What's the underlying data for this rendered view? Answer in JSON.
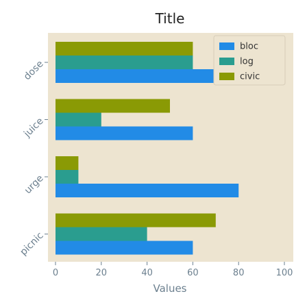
{
  "chart_data": {
    "type": "bar",
    "orientation": "horizontal",
    "title": "Title",
    "xlabel": "Values",
    "ylabel": "",
    "xlim": [
      0,
      100
    ],
    "xticks": [
      0,
      20,
      40,
      60,
      80,
      100
    ],
    "categories": [
      "dose",
      "juice",
      "urge",
      "picnic"
    ],
    "series": [
      {
        "name": "bloc",
        "color": "#228be6",
        "values": [
          70,
          60,
          80,
          60
        ]
      },
      {
        "name": "log",
        "color": "#2a9d8f",
        "values": [
          60,
          20,
          10,
          40
        ]
      },
      {
        "name": "civic",
        "color": "#8a9a05",
        "values": [
          60,
          50,
          10,
          70
        ]
      }
    ],
    "grid": false,
    "legend_position": "top-right",
    "background_color": "#ede4d0"
  }
}
